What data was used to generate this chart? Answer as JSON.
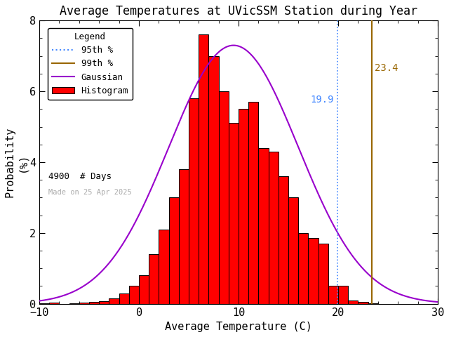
{
  "title": "Average Temperatures at UVicSSM Station during Year",
  "xlabel": "Average Temperature (C)",
  "ylabel": "Probability\n(%)",
  "xlim": [
    -10,
    30
  ],
  "ylim": [
    0,
    8
  ],
  "yticks": [
    0,
    2,
    4,
    6,
    8
  ],
  "xticks": [
    -10,
    0,
    10,
    20,
    30
  ],
  "bar_color": "#ff0000",
  "bar_edgecolor": "#000000",
  "gaussian_color": "#9900cc",
  "pct95_color": "#4488ff",
  "pct99_color": "#996600",
  "pct95_value": 19.9,
  "pct99_value": 23.4,
  "n_days": 4900,
  "made_on": "Made on 25 Apr 2025",
  "hist_bin_left": [
    -10,
    -9,
    -8,
    -7,
    -6,
    -5,
    -4,
    -3,
    -2,
    -1,
    0,
    1,
    2,
    3,
    4,
    5,
    6,
    7,
    8,
    9,
    10,
    11,
    12,
    13,
    14,
    15,
    16,
    17,
    18,
    19,
    20,
    21,
    22,
    23,
    24,
    25,
    26,
    27,
    28,
    29
  ],
  "hist_values": [
    0.02,
    0.04,
    0.0,
    0.02,
    0.04,
    0.06,
    0.08,
    0.16,
    0.3,
    0.5,
    0.8,
    1.4,
    2.1,
    3.0,
    3.8,
    5.8,
    7.6,
    7.0,
    6.0,
    5.1,
    5.5,
    5.7,
    4.4,
    4.3,
    3.6,
    3.0,
    2.0,
    1.85,
    1.7,
    0.5,
    0.5,
    0.1,
    0.05,
    0.02,
    0.0,
    0.0,
    0.0,
    0.0,
    0.0,
    0.0
  ],
  "gauss_mean": 9.5,
  "gauss_std": 6.5,
  "gauss_peak": 7.3,
  "background_color": "#ffffff",
  "title_fontsize": 12,
  "label_fontsize": 11,
  "tick_fontsize": 11
}
